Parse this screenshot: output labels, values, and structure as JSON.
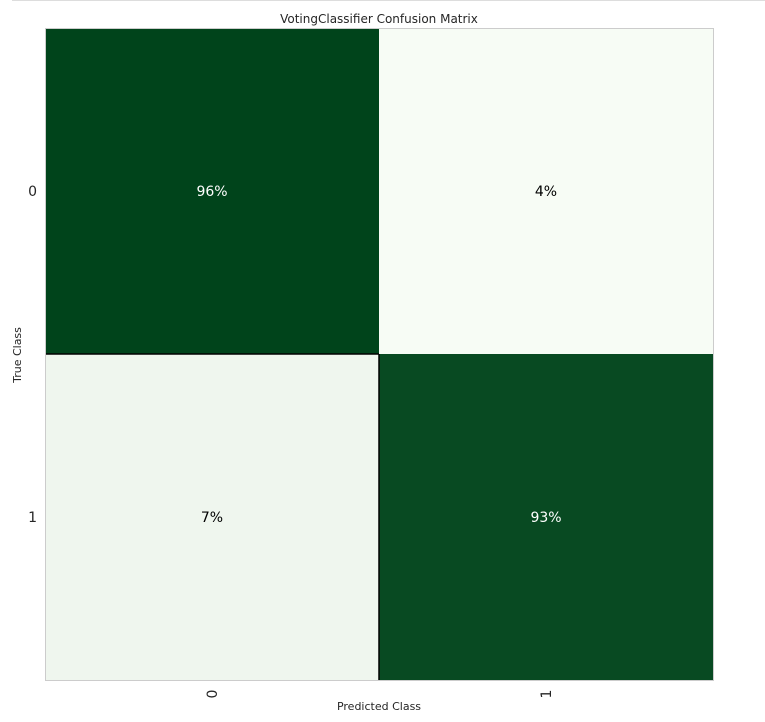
{
  "chart_data": {
    "type": "heatmap",
    "title": "VotingClassifier Confusion Matrix",
    "xlabel": "Predicted Class",
    "ylabel": "True Class",
    "x_categories": [
      "0",
      "1"
    ],
    "y_categories": [
      "0",
      "1"
    ],
    "values": [
      [
        96,
        4
      ],
      [
        7,
        93
      ]
    ],
    "value_labels": [
      [
        "96%",
        "4%"
      ],
      [
        "7%",
        "93%"
      ]
    ],
    "colormap": "Greens",
    "colors": {
      "high": "#00441b",
      "low": "#f7fcf5",
      "grid": "#000000"
    },
    "grid": false
  }
}
